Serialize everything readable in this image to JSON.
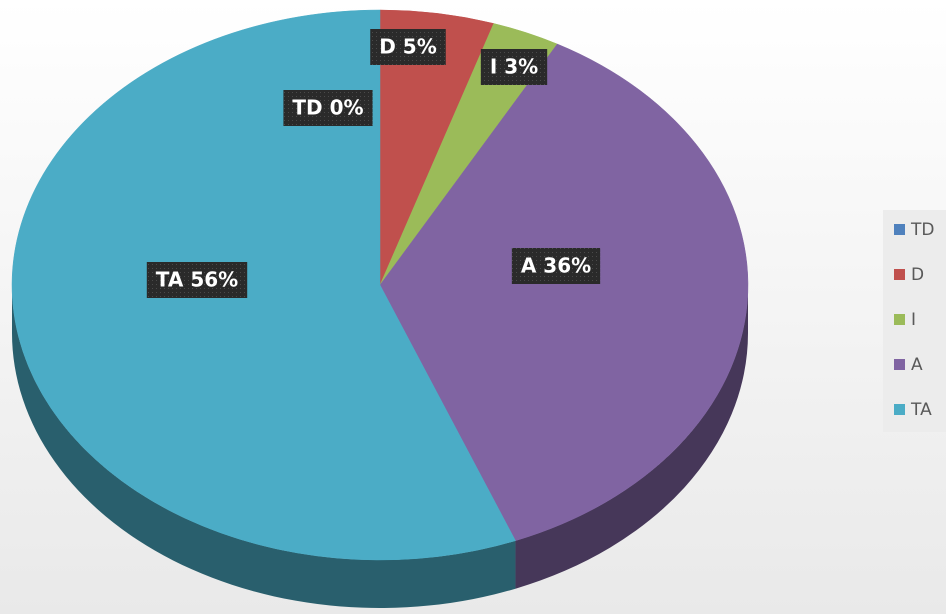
{
  "chart_data": {
    "type": "pie",
    "categories": [
      "TD",
      "D",
      "I",
      "A",
      "TA"
    ],
    "values": [
      0,
      5,
      3,
      36,
      56
    ],
    "value_labels": [
      "TD 0%",
      "D 5%",
      "I 3%",
      "A 36%",
      "TA 56%"
    ],
    "colors": [
      "#4f81bd",
      "#c0504d",
      "#9bbb59",
      "#8064a2",
      "#4bacc6"
    ],
    "legend": "right"
  }
}
